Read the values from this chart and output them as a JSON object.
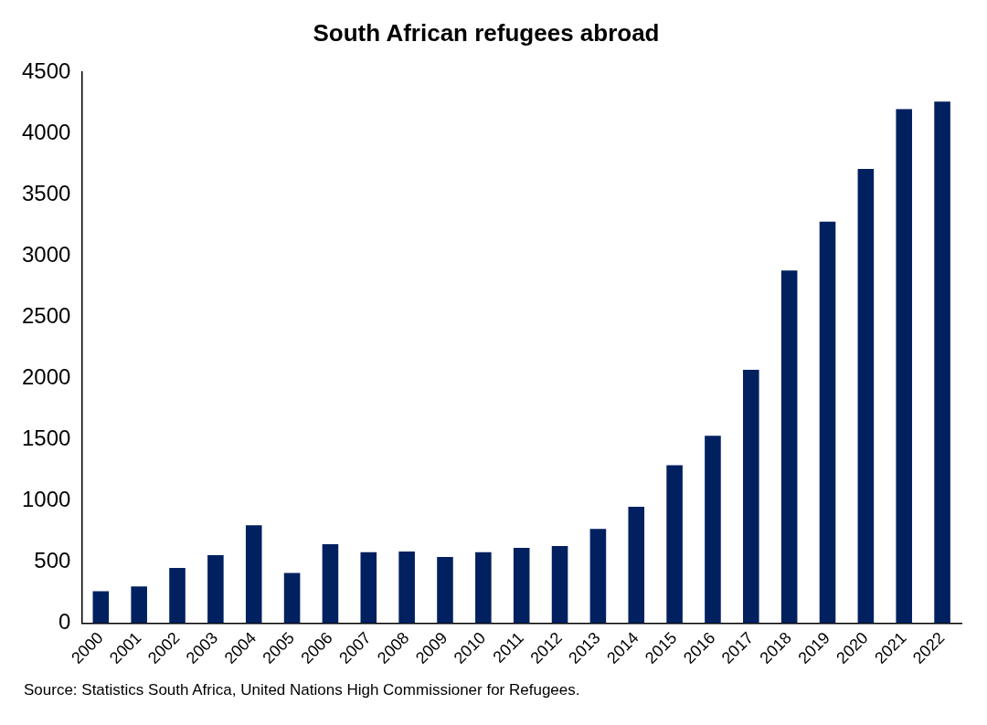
{
  "chart_data": {
    "type": "bar",
    "title": "South African refugees abroad",
    "categories": [
      "2000",
      "2001",
      "2002",
      "2003",
      "2004",
      "2005",
      "2006",
      "2007",
      "2008",
      "2009",
      "2010",
      "2011",
      "2012",
      "2013",
      "2014",
      "2015",
      "2016",
      "2017",
      "2018",
      "2019",
      "2020",
      "2021",
      "2022"
    ],
    "values": [
      260,
      300,
      450,
      555,
      800,
      410,
      645,
      580,
      585,
      540,
      580,
      615,
      630,
      770,
      950,
      1290,
      1530,
      2070,
      2880,
      3280,
      3710,
      4200,
      4260
    ],
    "color": "#002060",
    "ylim": [
      0,
      4500
    ],
    "yticks": [
      0,
      500,
      1000,
      1500,
      2000,
      2500,
      3000,
      3500,
      4000,
      4500
    ],
    "grid": false,
    "legend": false,
    "annotations": [
      "Source: Statistics South Africa, United Nations High Commissioner for Refugees."
    ]
  }
}
